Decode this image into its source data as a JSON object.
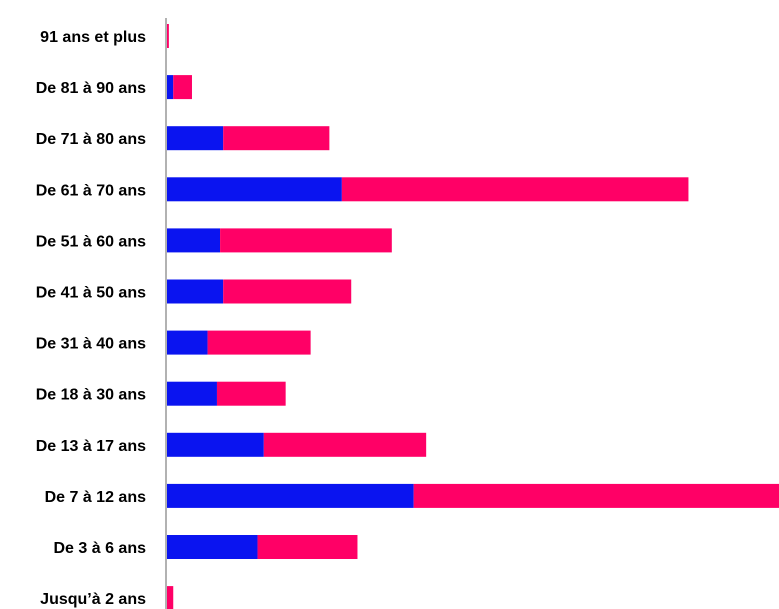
{
  "chart_data": {
    "type": "bar",
    "orientation": "horizontal",
    "stacked": true,
    "categories": [
      "91 ans et plus",
      "De 81 à 90 ans",
      "De 71 à 80 ans",
      "De 61 à 70 ans",
      "De 51 à 60 ans",
      "De 41 à 50 ans",
      "De 31 à 40 ans",
      "De 18 à 30 ans",
      "De 13 à 17 ans",
      "De 7 à 12 ans",
      "De 3 à 6 ans",
      "Jusqu’à 2 ans"
    ],
    "series": [
      {
        "color": "#0a14f0",
        "values": [
          0,
          1,
          9,
          28,
          8.5,
          9,
          6.5,
          8,
          15.5,
          39.5,
          14.5,
          0
        ]
      },
      {
        "color": "#ff0066",
        "values": [
          0.3,
          3,
          17,
          55.5,
          27.5,
          20.5,
          16.5,
          11,
          26,
          58.5,
          16,
          1
        ]
      }
    ],
    "xlim": [
      0,
      98
    ],
    "grid": false,
    "legend": "none",
    "axis_color": "#999999"
  }
}
